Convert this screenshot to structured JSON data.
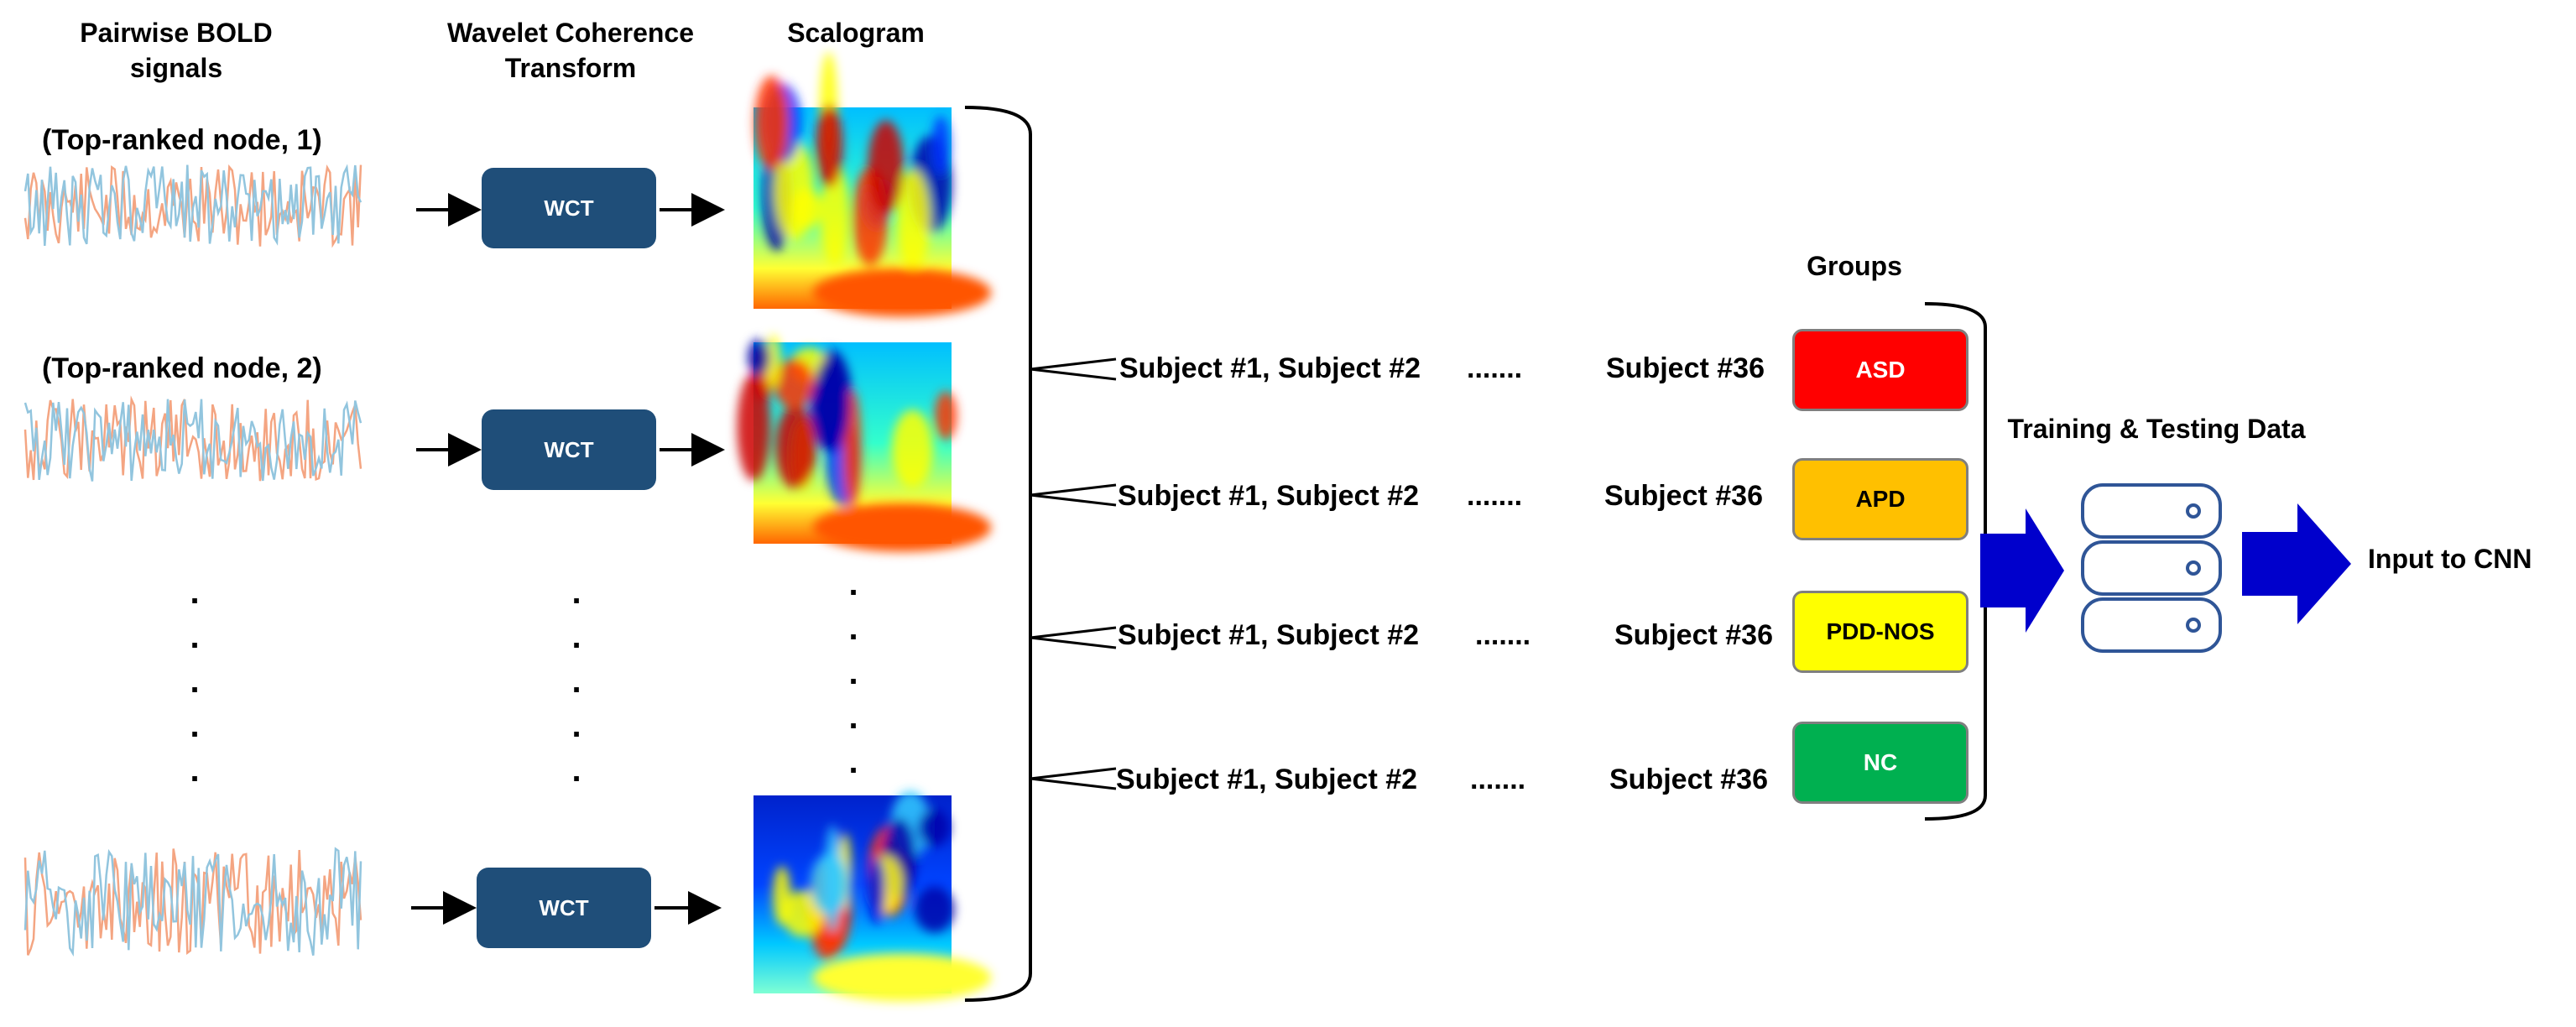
{
  "headers": {
    "bold_signals": "Pairwise BOLD signals",
    "wct_transform": "Wavelet Coherence Transform",
    "scalogram": "Scalogram",
    "groups": "Groups",
    "training_testing": "Training & Testing Data",
    "input_cnn": "Input to CNN"
  },
  "signal_labels": [
    "(Top-ranked node, 1)",
    "(Top-ranked node, 2)"
  ],
  "wct_label": "WCT",
  "subject_rows": [
    {
      "left": "Subject #1, Subject #2",
      "dots": ".......",
      "right": "Subject #36"
    },
    {
      "left": "Subject #1, Subject #2",
      "dots": ".......",
      "right": "Subject #36"
    },
    {
      "left": "Subject #1, Subject #2",
      "dots": ".......",
      "right": "Subject #36"
    },
    {
      "left": "Subject #1, Subject #2",
      "dots": ".......",
      "right": "Subject #36"
    }
  ],
  "groups": [
    {
      "label": "ASD",
      "color": "#ff0000",
      "text_color": "#ffffff"
    },
    {
      "label": "APD",
      "color": "#ffc000",
      "text_color": "#000000"
    },
    {
      "label": "PDD-NOS",
      "color": "#ffff00",
      "text_color": "#000000"
    },
    {
      "label": "NC",
      "color": "#00b050",
      "text_color": "#ffffff"
    }
  ],
  "colors": {
    "wct_box": "#1f4e79",
    "arrow_blue": "#0000cc",
    "signal_red": "#f4a582",
    "signal_blue": "#92c5de",
    "database_outline": "#2f5597"
  }
}
